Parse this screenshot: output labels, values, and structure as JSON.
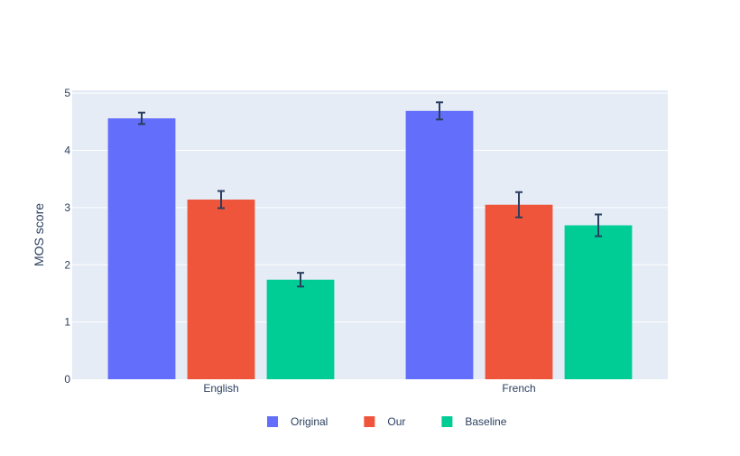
{
  "chart_data": {
    "type": "bar",
    "title": "",
    "xlabel": "",
    "ylabel": "MOS score",
    "ylim": [
      0,
      5.05
    ],
    "yticks": [
      0,
      1,
      2,
      3,
      4,
      5
    ],
    "categories": [
      "English",
      "French"
    ],
    "grid": true,
    "legend_position": "bottom-center",
    "series": [
      {
        "name": "Original",
        "color": "#636efa",
        "values": [
          4.56,
          4.69
        ],
        "errors": [
          0.1,
          0.15
        ]
      },
      {
        "name": "Our",
        "color": "#ef553b",
        "values": [
          3.14,
          3.05
        ],
        "errors": [
          0.15,
          0.22
        ]
      },
      {
        "name": "Baseline",
        "color": "#00cc96",
        "values": [
          1.74,
          2.69
        ],
        "errors": [
          0.12,
          0.19
        ]
      }
    ],
    "colors": {
      "plot_background": "#e5ecf6",
      "gridline": "#ffffff",
      "text": "#2a3f5f",
      "error_bar": "#2a3f5f"
    }
  }
}
